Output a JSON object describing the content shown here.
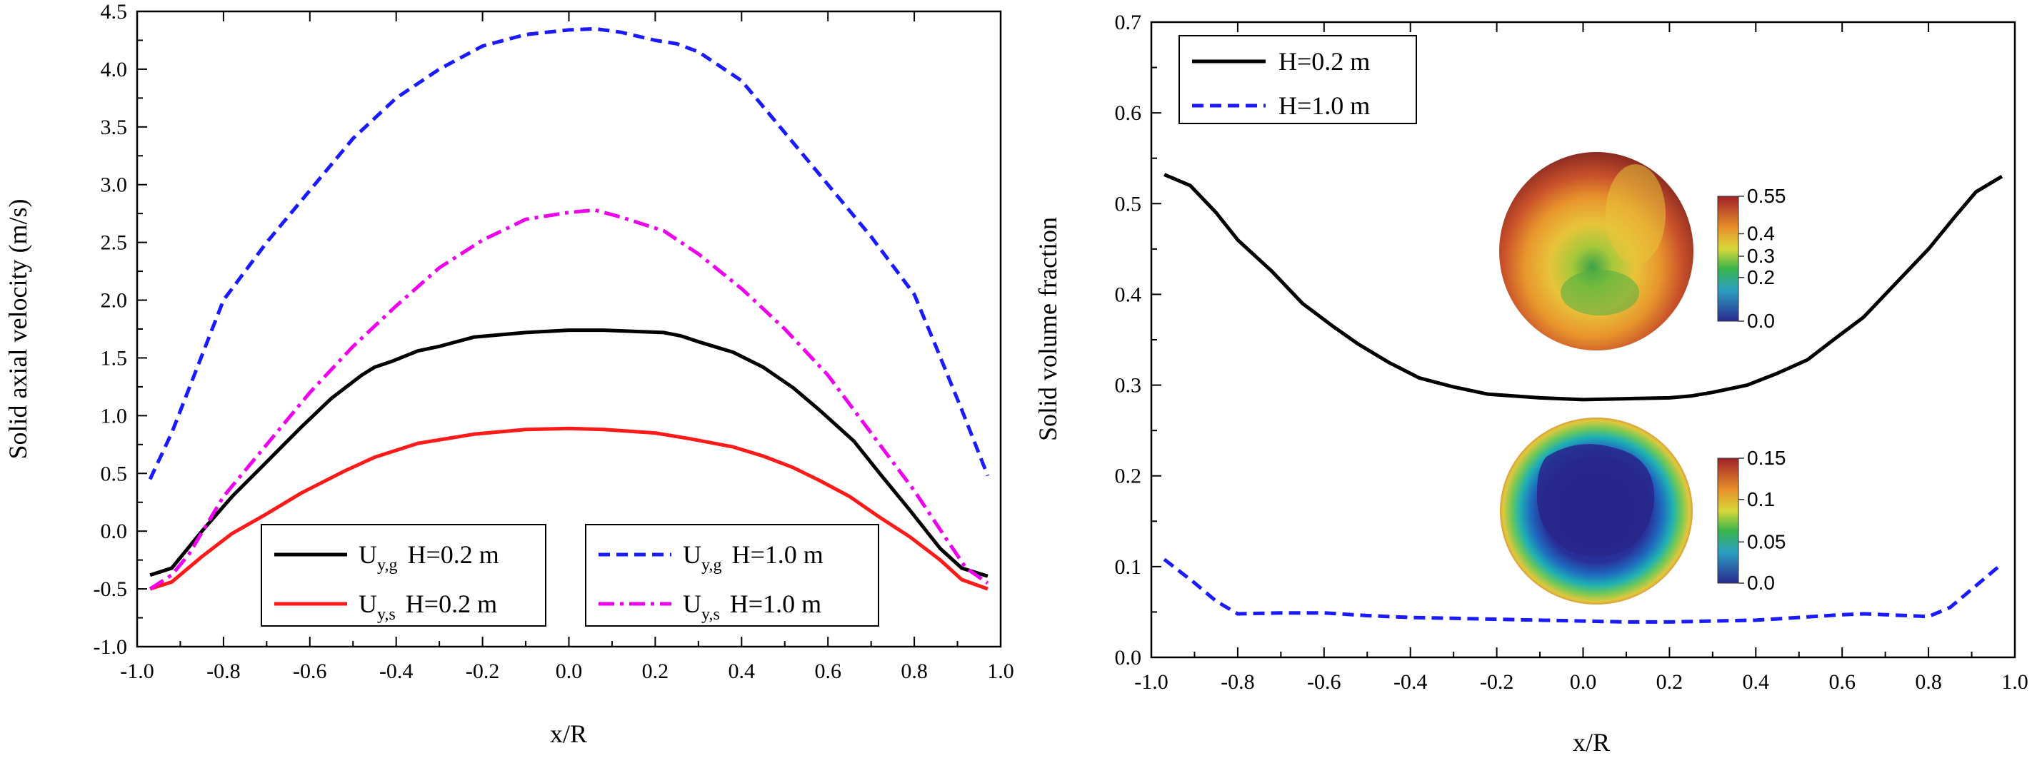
{
  "colors": {
    "black": "#000000",
    "red": "#ff1a1a",
    "blue": "#1a1aff",
    "magenta": "#ee00ee"
  },
  "chart_data": [
    {
      "type": "line",
      "xlabel": "x/R",
      "ylabel": "Solid axial velocity (m/s)",
      "xlim": [
        -1.0,
        1.0
      ],
      "ylim": [
        -1.0,
        4.5
      ],
      "xticks": [
        "-1.0",
        "-0.8",
        "-0.6",
        "-0.4",
        "-0.2",
        "0.0",
        "0.2",
        "0.4",
        "0.6",
        "0.8",
        "1.0"
      ],
      "yticks": [
        "-1.0",
        "-0.5",
        "0.0",
        "0.5",
        "1.0",
        "1.5",
        "2.0",
        "2.5",
        "3.0",
        "3.5",
        "4.0",
        "4.5"
      ],
      "legend_placement": "bottom",
      "series": [
        {
          "name_main": "U",
          "name_sub": "y,g",
          "name_rest": "H=0.2 m",
          "color": "#000000",
          "dash": "solid",
          "x": [
            -0.97,
            -0.92,
            -0.85,
            -0.78,
            -0.7,
            -0.62,
            -0.55,
            -0.48,
            -0.45,
            -0.41,
            -0.35,
            -0.3,
            -0.22,
            -0.1,
            0.0,
            0.08,
            0.22,
            0.26,
            0.3,
            0.38,
            0.45,
            0.52,
            0.58,
            0.66,
            0.72,
            0.79,
            0.86,
            0.91,
            0.97
          ],
          "y": [
            -0.38,
            -0.32,
            0.0,
            0.3,
            0.6,
            0.9,
            1.15,
            1.35,
            1.42,
            1.47,
            1.56,
            1.6,
            1.68,
            1.72,
            1.74,
            1.74,
            1.72,
            1.69,
            1.64,
            1.55,
            1.42,
            1.24,
            1.05,
            0.78,
            0.5,
            0.18,
            -0.15,
            -0.32,
            -0.39
          ]
        },
        {
          "name_main": "U",
          "name_sub": "y,s",
          "name_rest": "H=0.2 m",
          "color": "#ff1a1a",
          "dash": "solid",
          "x": [
            -0.97,
            -0.92,
            -0.85,
            -0.78,
            -0.7,
            -0.62,
            -0.52,
            -0.45,
            -0.35,
            -0.22,
            -0.1,
            0.0,
            0.08,
            0.2,
            0.28,
            0.38,
            0.45,
            0.52,
            0.58,
            0.65,
            0.72,
            0.79,
            0.86,
            0.91,
            0.97
          ],
          "y": [
            -0.5,
            -0.44,
            -0.22,
            -0.02,
            0.15,
            0.33,
            0.52,
            0.64,
            0.76,
            0.84,
            0.88,
            0.89,
            0.88,
            0.85,
            0.8,
            0.73,
            0.65,
            0.55,
            0.44,
            0.3,
            0.12,
            -0.05,
            -0.25,
            -0.42,
            -0.5
          ]
        },
        {
          "name_main": "U",
          "name_sub": "y,g",
          "name_rest": "H=1.0 m",
          "color": "#1a1aff",
          "dash": "dash",
          "x": [
            -0.97,
            -0.92,
            -0.8,
            -0.7,
            -0.6,
            -0.5,
            -0.4,
            -0.3,
            -0.2,
            -0.1,
            0.0,
            0.06,
            0.12,
            0.2,
            0.25,
            0.3,
            0.4,
            0.5,
            0.6,
            0.7,
            0.8,
            0.85,
            0.91,
            0.97
          ],
          "y": [
            0.45,
            0.85,
            2.0,
            2.5,
            2.95,
            3.4,
            3.75,
            4.0,
            4.2,
            4.3,
            4.34,
            4.35,
            4.32,
            4.25,
            4.22,
            4.15,
            3.9,
            3.45,
            3.0,
            2.55,
            2.05,
            1.6,
            1.05,
            0.48
          ]
        },
        {
          "name_main": "U",
          "name_sub": "y,s",
          "name_rest": "H=1.0 m",
          "color": "#ee00ee",
          "dash": "dashdot",
          "x": [
            -0.97,
            -0.92,
            -0.88,
            -0.8,
            -0.7,
            -0.6,
            -0.5,
            -0.4,
            -0.3,
            -0.2,
            -0.1,
            0.0,
            0.06,
            0.12,
            0.22,
            0.3,
            0.4,
            0.5,
            0.6,
            0.7,
            0.8,
            0.88,
            0.92,
            0.97
          ],
          "y": [
            -0.5,
            -0.38,
            -0.2,
            0.3,
            0.75,
            1.2,
            1.6,
            1.95,
            2.28,
            2.52,
            2.7,
            2.76,
            2.78,
            2.72,
            2.6,
            2.4,
            2.1,
            1.75,
            1.35,
            0.85,
            0.35,
            -0.1,
            -0.32,
            -0.45
          ]
        }
      ]
    },
    {
      "type": "line",
      "xlabel": "x/R",
      "ylabel": "Solid volume fraction",
      "xlim": [
        -1.0,
        1.0
      ],
      "ylim": [
        0.0,
        0.7
      ],
      "xticks": [
        "-1.0",
        "-0.8",
        "-0.6",
        "-0.4",
        "-0.2",
        "0.0",
        "0.2",
        "0.4",
        "0.6",
        "0.8",
        "1.0"
      ],
      "yticks": [
        "0.0",
        "0.1",
        "0.2",
        "0.3",
        "0.4",
        "0.5",
        "0.6",
        "0.7"
      ],
      "legend_placement": "top-left",
      "series": [
        {
          "name_main": "H=0.2 m",
          "color": "#000000",
          "dash": "solid",
          "x": [
            -0.97,
            -0.91,
            -0.85,
            -0.8,
            -0.72,
            -0.65,
            -0.58,
            -0.52,
            -0.45,
            -0.38,
            -0.3,
            -0.22,
            -0.1,
            0.0,
            0.1,
            0.2,
            0.25,
            0.3,
            0.38,
            0.45,
            0.52,
            0.58,
            0.65,
            0.72,
            0.8,
            0.86,
            0.91,
            0.97
          ],
          "y": [
            0.532,
            0.52,
            0.49,
            0.46,
            0.425,
            0.39,
            0.365,
            0.345,
            0.325,
            0.308,
            0.298,
            0.29,
            0.286,
            0.284,
            0.285,
            0.286,
            0.288,
            0.292,
            0.3,
            0.313,
            0.328,
            0.35,
            0.375,
            0.41,
            0.45,
            0.485,
            0.513,
            0.53
          ]
        },
        {
          "name_main": "H=1.0 m",
          "color": "#1a1aff",
          "dash": "dash",
          "x": [
            -0.97,
            -0.9,
            -0.85,
            -0.8,
            -0.7,
            -0.6,
            -0.5,
            -0.4,
            -0.3,
            -0.2,
            -0.1,
            0.0,
            0.1,
            0.2,
            0.3,
            0.4,
            0.5,
            0.6,
            0.65,
            0.7,
            0.8,
            0.85,
            0.9,
            0.97
          ],
          "y": [
            0.108,
            0.082,
            0.062,
            0.048,
            0.049,
            0.049,
            0.046,
            0.044,
            0.043,
            0.042,
            0.041,
            0.04,
            0.039,
            0.039,
            0.04,
            0.041,
            0.044,
            0.047,
            0.048,
            0.047,
            0.045,
            0.055,
            0.075,
            0.103
          ]
        }
      ],
      "insets": [
        {
          "colorbar_labels": [
            "0.55",
            "0.4",
            "0.3",
            "0.2",
            "0.0"
          ]
        },
        {
          "colorbar_labels": [
            "0.15",
            "0.1",
            "0.05",
            "0.0"
          ]
        }
      ]
    }
  ]
}
